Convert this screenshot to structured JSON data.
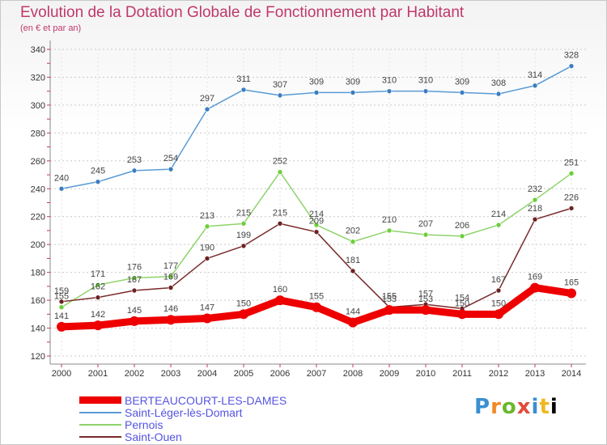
{
  "title": "Evolution de la Dotation Globale de Fonctionnement par Habitant",
  "subtitle": "(en € et par an)",
  "logo_text": "Proxiti",
  "chart_data": {
    "type": "line",
    "title": "Evolution de la Dotation Globale de Fonctionnement par Habitant",
    "subtitle": "(en € et par an)",
    "xlabel": "",
    "ylabel": "",
    "ylim": [
      120,
      340
    ],
    "yticks": [
      120,
      140,
      160,
      180,
      200,
      220,
      240,
      260,
      280,
      300,
      320,
      340
    ],
    "grid": true,
    "legend_position": "bottom-left",
    "categories": [
      "2000",
      "2001",
      "2002",
      "2003",
      "2004",
      "2005",
      "2006",
      "2007",
      "2008",
      "2009",
      "2010",
      "2011",
      "2012",
      "2013",
      "2014"
    ],
    "series": [
      {
        "name": "Saint-Léger-lès-Domart",
        "color": "#5b9bd5",
        "marker_color": "#3a7ec0",
        "values": [
          240,
          245,
          253,
          254,
          297,
          311,
          307,
          309,
          309,
          310,
          310,
          309,
          308,
          314,
          328
        ]
      },
      {
        "name": "Pernois",
        "color": "#8fd36b",
        "marker_color": "#6ccf3a",
        "values": [
          155,
          171,
          176,
          177,
          213,
          215,
          252,
          214,
          202,
          210,
          207,
          206,
          214,
          232,
          251
        ]
      },
      {
        "name": "Saint-Ouen",
        "color": "#7a2a2a",
        "marker_color": "#6a2222",
        "values": [
          159,
          162,
          167,
          169,
          190,
          199,
          215,
          209,
          181,
          155,
          157,
          154,
          167,
          218,
          226
        ]
      },
      {
        "name": "BERTEAUCOURT-LES-DAMES",
        "color": "#ee0000",
        "marker_color": "#ee0000",
        "values": [
          141,
          142,
          145,
          146,
          147,
          150,
          160,
          155,
          144,
          153,
          153,
          150,
          150,
          169,
          165
        ]
      }
    ],
    "legend_order": [
      "BERTEAUCOURT-LES-DAMES",
      "Saint-Léger-lès-Domart",
      "Pernois",
      "Saint-Ouen"
    ]
  }
}
